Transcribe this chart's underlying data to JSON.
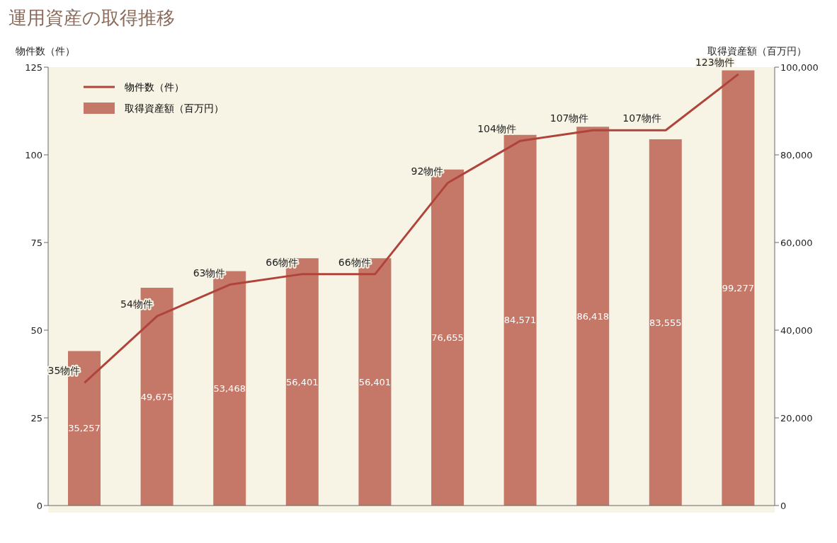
{
  "chart_data": {
    "type": "bar",
    "title": "運用資産の取得推移",
    "ylabel": "物件数（件）",
    "y2label": "取得資産額（百万円）",
    "categories": [
      null,
      null,
      null,
      null,
      null,
      null,
      null,
      null,
      null,
      null
    ],
    "series": [
      {
        "name": "取得資産額（百万円）",
        "axis": "y2",
        "color": "#c57868",
        "values": [
          35257,
          49675,
          53468,
          56401,
          56401,
          76655,
          84571,
          86418,
          83555,
          99277
        ],
        "value_labels": [
          "35,257",
          "49,675",
          "53,468",
          "56,401",
          "56,401",
          "76,655",
          "84,571",
          "86,418",
          "83,555",
          "99,277"
        ]
      },
      {
        "name": "物件数（件）",
        "type": "line",
        "axis": "y",
        "color": "#b0443a",
        "values": [
          35,
          54,
          63,
          66,
          66,
          92,
          104,
          107,
          107,
          123
        ],
        "value_labels": [
          "35物件",
          "54物件",
          "63物件",
          "66物件",
          "66物件",
          "92物件",
          "104物件",
          "107物件",
          "107物件",
          "123物件"
        ]
      }
    ],
    "ylim": [
      0,
      125
    ],
    "yticks": [
      0,
      25,
      50,
      75,
      100,
      125
    ],
    "y2lim": [
      0,
      100000
    ],
    "y2ticks": [
      {
        "value": 0,
        "label": "0"
      },
      {
        "value": 20000,
        "label": "20,000"
      },
      {
        "value": 40000,
        "label": "40,000"
      },
      {
        "value": 60000,
        "label": "60,000"
      },
      {
        "value": 80000,
        "label": "80,000"
      },
      {
        "value": 100000,
        "label": "100,000"
      }
    ],
    "legend": "top left",
    "grid": false,
    "marker": "none",
    "line_style": "solid"
  }
}
